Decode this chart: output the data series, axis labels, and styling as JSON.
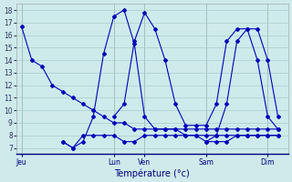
{
  "xlabel": "Température (°c)",
  "background_color": "#ceeaea",
  "line_color": "#0000bb",
  "grid_color": "#aacccc",
  "x_ticks_labels": [
    "Jeu",
    "Lun",
    "Ven",
    "Sam",
    "Dim"
  ],
  "x_ticks_pos": [
    0,
    36,
    48,
    72,
    96
  ],
  "ylim": [
    6.5,
    18.5
  ],
  "yticks": [
    7,
    8,
    9,
    10,
    11,
    12,
    13,
    14,
    15,
    16,
    17,
    18
  ],
  "xlim": [
    -2,
    104
  ],
  "series": [
    {
      "x": [
        0,
        4,
        8,
        12,
        16,
        20,
        24,
        28,
        32,
        36,
        40,
        44,
        48,
        52,
        56,
        60,
        64,
        68,
        72,
        76,
        80,
        84,
        88,
        92,
        96,
        100
      ],
      "y": [
        16.7,
        14.0,
        13.5,
        12.0,
        11.5,
        11.0,
        10.5,
        10.0,
        9.5,
        9.0,
        9.0,
        8.5,
        8.5,
        8.5,
        8.5,
        8.5,
        8.5,
        8.5,
        8.5,
        8.5,
        8.5,
        8.5,
        8.5,
        8.5,
        8.5,
        8.5
      ]
    },
    {
      "x": [
        16,
        20,
        24,
        28,
        32,
        36,
        40,
        44,
        48,
        52,
        56,
        60,
        64,
        68,
        72,
        76,
        80,
        84,
        88,
        92,
        96,
        100
      ],
      "y": [
        7.5,
        7.0,
        7.5,
        9.5,
        14.5,
        17.5,
        18.0,
        15.3,
        9.5,
        8.5,
        8.5,
        8.5,
        8.0,
        8.0,
        8.0,
        8.0,
        8.0,
        8.0,
        8.0,
        8.0,
        8.0,
        8.0
      ]
    },
    {
      "x": [
        16,
        20,
        24,
        28,
        32,
        36,
        40,
        44,
        48,
        52,
        56,
        60,
        64,
        68,
        72,
        76,
        80,
        84,
        88,
        92,
        96,
        100
      ],
      "y": [
        7.5,
        7.0,
        8.0,
        8.0,
        8.0,
        8.0,
        7.5,
        7.5,
        8.0,
        8.0,
        8.0,
        8.0,
        8.0,
        8.0,
        7.5,
        7.5,
        7.5,
        8.0,
        8.0,
        8.0,
        8.0,
        8.0
      ]
    },
    {
      "x": [
        36,
        40,
        44,
        48,
        52,
        56,
        60,
        64,
        68,
        72,
        76,
        80,
        84,
        88,
        92,
        96,
        100
      ],
      "y": [
        9.5,
        10.5,
        15.5,
        17.8,
        16.5,
        14.0,
        10.5,
        8.8,
        8.8,
        8.8,
        10.5,
        15.5,
        16.5,
        16.5,
        14.0,
        9.5,
        8.5
      ]
    },
    {
      "x": [
        72,
        76,
        80,
        84,
        88,
        92,
        96,
        100
      ],
      "y": [
        7.5,
        8.0,
        10.5,
        15.5,
        16.5,
        16.5,
        14.0,
        9.5
      ]
    }
  ]
}
